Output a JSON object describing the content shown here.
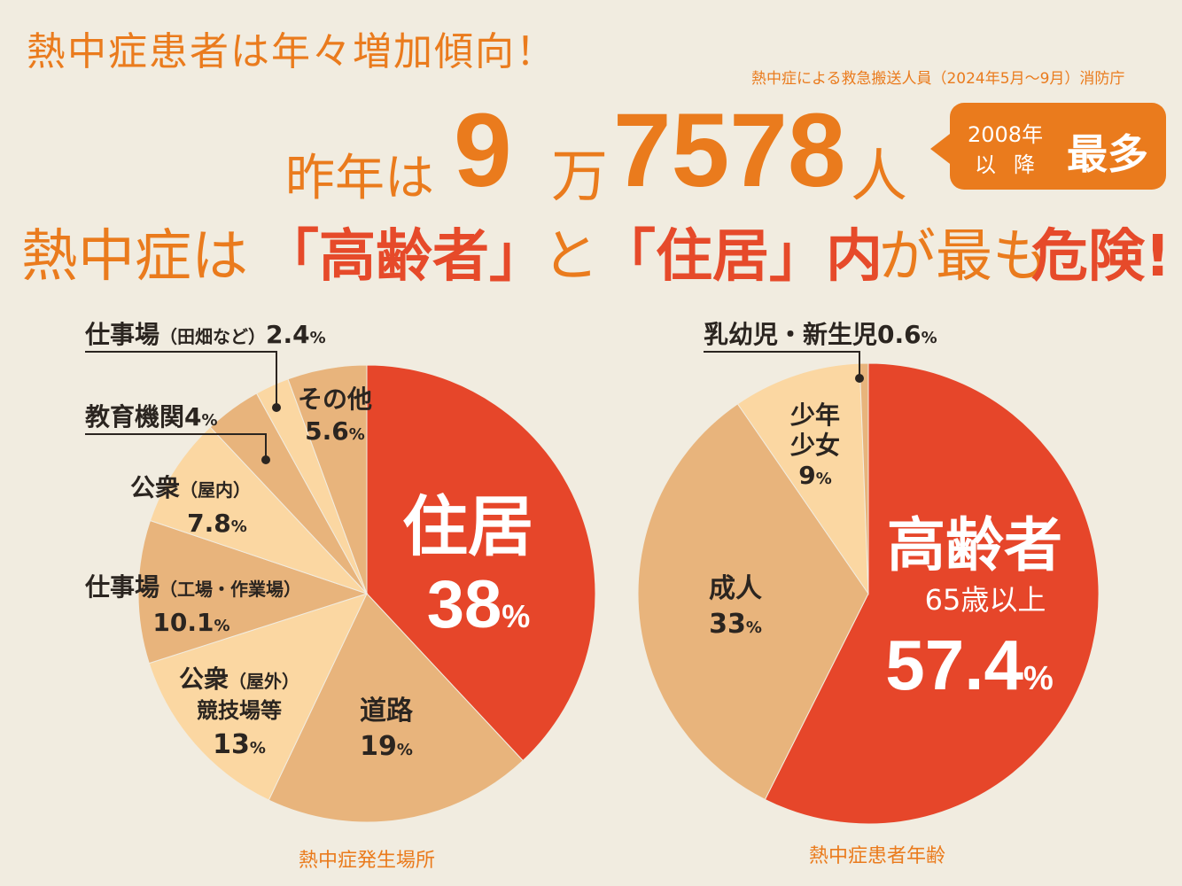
{
  "header": {
    "headline": "熱中症患者は年々増加傾向！",
    "source": "熱中症による救急搬送人員（2024年5月〜9月）消防庁",
    "prefix": "昨年は",
    "count_man": "9",
    "unit_man": "万",
    "count_rest": "7578",
    "unit_people": "人",
    "badge_year1": "2008年",
    "badge_year2": "以降",
    "badge_max": "最多",
    "line3_a": "熱中症は",
    "line3_b": "「高齢者」",
    "line3_c": "と",
    "line3_d": "「住居」内",
    "line3_e": "が最も",
    "line3_f": "危険!"
  },
  "colors": {
    "accent_orange": "#ea7b1d",
    "red": "#e6462a",
    "tan": "#e8b47c",
    "light": "#fbd7a2",
    "background": "#f1ece0"
  },
  "chart_data": [
    {
      "type": "pie",
      "caption": "熱中症発生場所",
      "slices": [
        {
          "label": "住居",
          "value": 38,
          "display": "38%"
        },
        {
          "label": "道路",
          "value": 19,
          "display": "19%"
        },
        {
          "label": "公衆（屋外）競技場等",
          "value": 13,
          "display": "13%"
        },
        {
          "label": "仕事場（工場・作業場）",
          "value": 10.1,
          "display": "10.1%"
        },
        {
          "label": "公衆（屋内）",
          "value": 7.8,
          "display": "7.8%"
        },
        {
          "label": "教育機関",
          "value": 4,
          "display": "4%"
        },
        {
          "label": "仕事場（田畑など）",
          "value": 2.4,
          "display": "2.4%"
        },
        {
          "label": "その他",
          "value": 5.6,
          "display": "5.6%"
        }
      ]
    },
    {
      "type": "pie",
      "caption": "熱中症患者年齢",
      "slices": [
        {
          "label": "高齢者",
          "sublabel": "65歳以上",
          "value": 57.4,
          "display": "57.4%"
        },
        {
          "label": "成人",
          "value": 33,
          "display": "33%"
        },
        {
          "label": "少年少女",
          "value": 9,
          "display": "9%"
        },
        {
          "label": "乳幼児・新生児",
          "value": 0.6,
          "display": "0.6%"
        }
      ]
    }
  ]
}
